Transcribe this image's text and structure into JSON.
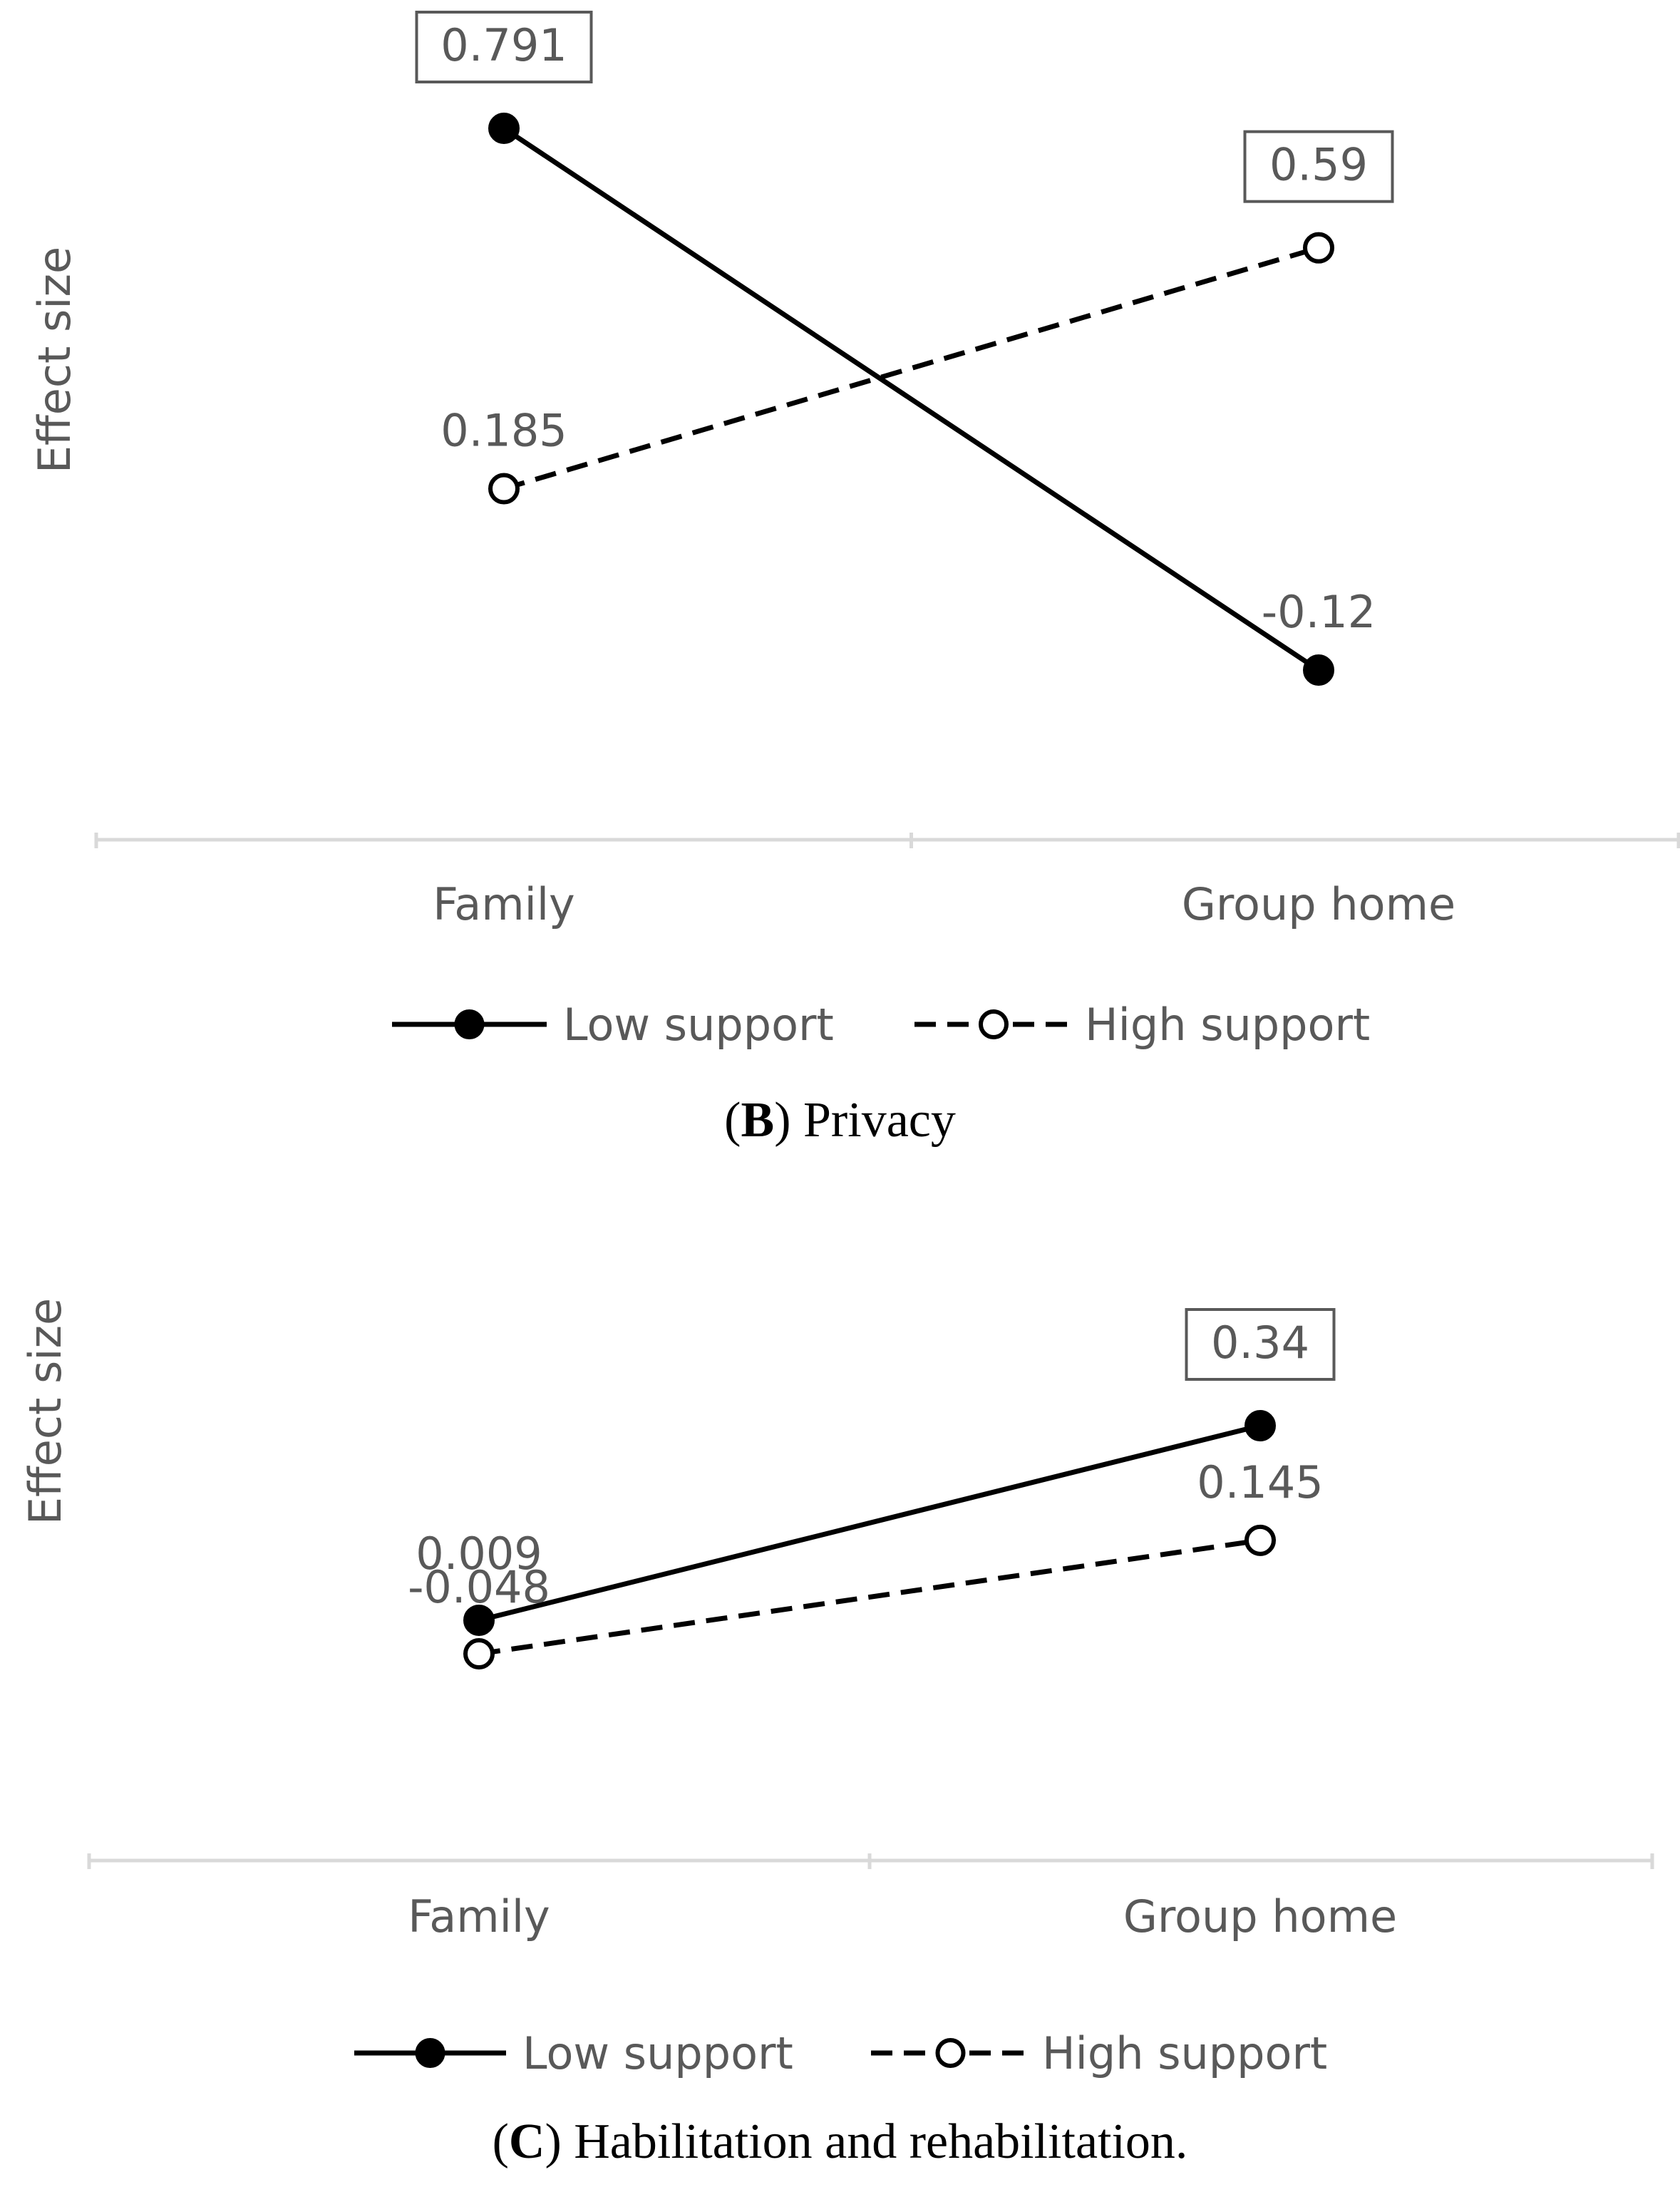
{
  "chart_data": [
    {
      "type": "line",
      "panel_letter": "B",
      "caption_text": "Privacy",
      "ylabel": "Effect size",
      "categories": [
        "Family",
        "Group home"
      ],
      "series": [
        {
          "name": "Low support",
          "values": [
            0.791,
            -0.12
          ],
          "labels": [
            "0.791",
            "-0.12"
          ],
          "boxed": [
            true,
            false
          ],
          "style": "solid",
          "marker": "filled"
        },
        {
          "name": "High support",
          "values": [
            0.185,
            0.59
          ],
          "labels": [
            "0.185",
            "0.59"
          ],
          "boxed": [
            false,
            true
          ],
          "style": "dashed",
          "marker": "open"
        }
      ],
      "ylim": [
        -0.4,
        1.0
      ],
      "grid": false,
      "legend_position": "bottom"
    },
    {
      "type": "line",
      "panel_letter": "C",
      "caption_text": "Habilitation and rehabilitation.",
      "ylabel": "Effect size",
      "categories": [
        "Family",
        "Group home"
      ],
      "series": [
        {
          "name": "Low support",
          "values": [
            0.009,
            0.34
          ],
          "labels": [
            "0.009",
            "0.34"
          ],
          "boxed": [
            false,
            true
          ],
          "style": "solid",
          "marker": "filled"
        },
        {
          "name": "High support",
          "values": [
            -0.048,
            0.145
          ],
          "labels": [
            "-0.048",
            "0.145"
          ],
          "boxed": [
            false,
            false
          ],
          "style": "dashed",
          "marker": "open"
        }
      ],
      "ylim": [
        -0.4,
        0.6
      ],
      "grid": false,
      "legend_position": "bottom"
    }
  ]
}
